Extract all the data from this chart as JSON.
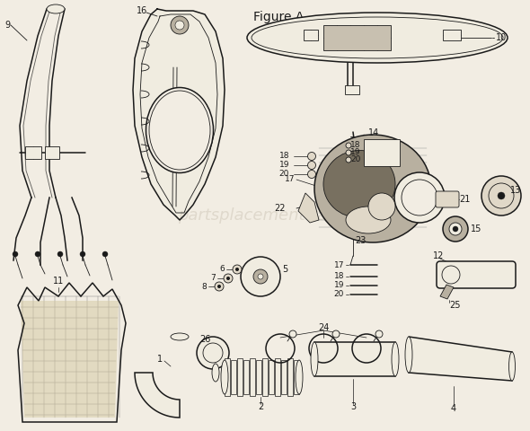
{
  "bg_color": "#f2ede3",
  "line_color": "#1a1a1a",
  "title": "Figure A",
  "colors": {
    "outline": "#1a1a1a",
    "fill_light": "#e0d8c8",
    "fill_medium": "#b8b0a0",
    "fill_dark": "#787060",
    "white_ish": "#f0ece0",
    "shadow": "#c8c0b0"
  }
}
